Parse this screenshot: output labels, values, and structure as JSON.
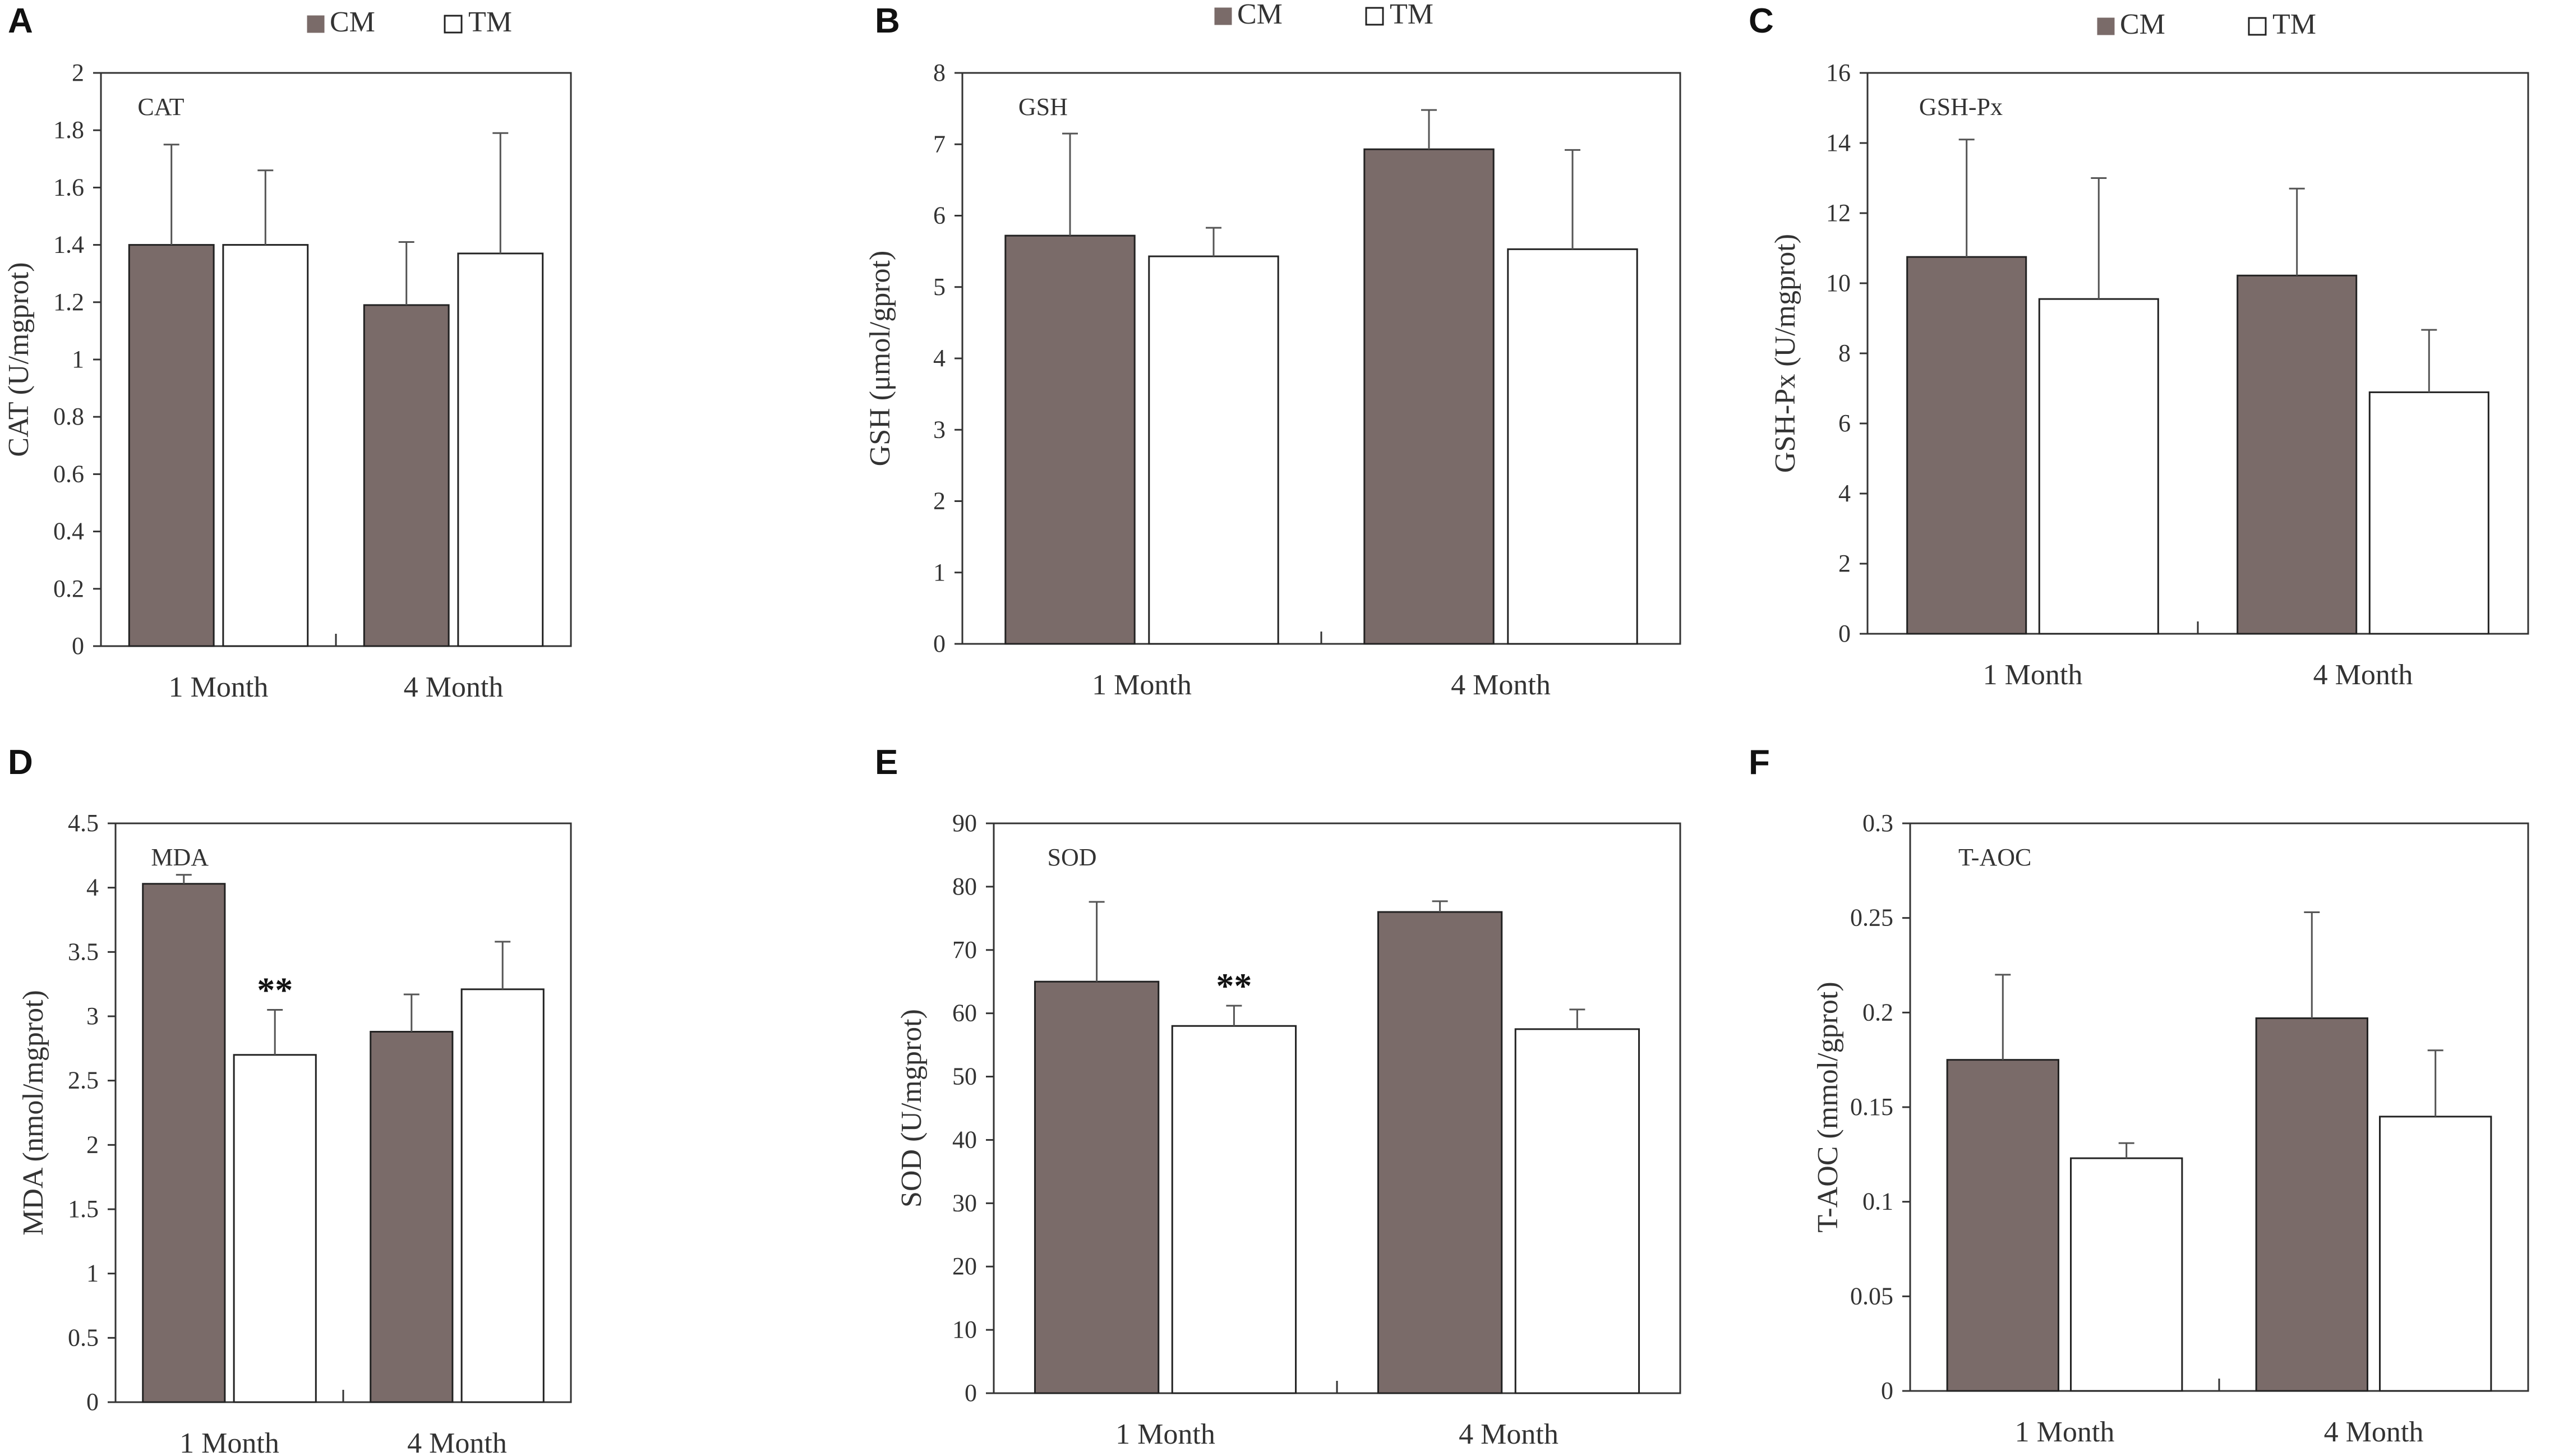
{
  "legend": {
    "cm": "CM",
    "tm": "TM"
  },
  "colors": {
    "cm_fill": "#7a6b69",
    "tm_fill": "#ffffff",
    "stroke": "#222222",
    "axis": "#333333"
  },
  "chart_data": [
    {
      "panel": "A",
      "type": "bar",
      "inner_label": "CAT",
      "categories": [
        "1 Month",
        "4 Month"
      ],
      "series": [
        {
          "name": "CM",
          "values": [
            1.4,
            1.19
          ],
          "errors": [
            0.35,
            0.22
          ]
        },
        {
          "name": "TM",
          "values": [
            1.4,
            1.37
          ],
          "errors": [
            0.26,
            0.42
          ]
        }
      ],
      "ylabel": "CAT (U/mgprot)",
      "ylim": [
        0,
        2
      ],
      "ytick_step": 0.2,
      "yticks": [
        "0",
        "0.2",
        "0.4",
        "0.6",
        "0.8",
        "1",
        "1.2",
        "1.4",
        "1.6",
        "1.8",
        "2"
      ],
      "annotations": []
    },
    {
      "panel": "B",
      "type": "bar",
      "inner_label": "GSH",
      "categories": [
        "1 Month",
        "4 Month"
      ],
      "series": [
        {
          "name": "CM",
          "values": [
            5.72,
            6.93
          ],
          "errors": [
            1.43,
            0.55
          ]
        },
        {
          "name": "TM",
          "values": [
            5.43,
            5.53
          ],
          "errors": [
            0.4,
            1.39
          ]
        }
      ],
      "ylabel": "GSH (μmol/gprot)",
      "ylim": [
        0,
        8
      ],
      "ytick_step": 1,
      "yticks": [
        "0",
        "1",
        "2",
        "3",
        "4",
        "5",
        "6",
        "7",
        "8"
      ],
      "annotations": []
    },
    {
      "panel": "C",
      "type": "bar",
      "inner_label": "GSH-Px",
      "categories": [
        "1 Month",
        "4 Month"
      ],
      "series": [
        {
          "name": "CM",
          "values": [
            10.75,
            10.22
          ],
          "errors": [
            3.35,
            2.48
          ]
        },
        {
          "name": "TM",
          "values": [
            9.55,
            6.89
          ],
          "errors": [
            3.45,
            1.78
          ]
        }
      ],
      "ylabel": "GSH-Px (U/mgprot)",
      "ylim": [
        0,
        16
      ],
      "ytick_step": 2,
      "yticks": [
        "0",
        "2",
        "4",
        "6",
        "8",
        "10",
        "12",
        "14",
        "16"
      ],
      "annotations": []
    },
    {
      "panel": "D",
      "type": "bar",
      "inner_label": "MDA",
      "categories": [
        "1 Month",
        "4 Month"
      ],
      "series": [
        {
          "name": "CM",
          "values": [
            4.03,
            2.88
          ],
          "errors": [
            0.07,
            0.29
          ]
        },
        {
          "name": "TM",
          "values": [
            2.7,
            3.21
          ],
          "errors": [
            0.35,
            0.37
          ]
        }
      ],
      "ylabel": "MDA (nmol/mgprot)",
      "ylim": [
        0,
        4.5
      ],
      "ytick_step": 0.5,
      "yticks": [
        "0",
        "0.5",
        "1",
        "1.5",
        "2",
        "2.5",
        "3",
        "3.5",
        "4",
        "4.5"
      ],
      "annotations": [
        {
          "series": 1,
          "category": 0,
          "text": "**"
        }
      ]
    },
    {
      "panel": "E",
      "type": "bar",
      "inner_label": "SOD",
      "categories": [
        "1 Month",
        "4 Month"
      ],
      "series": [
        {
          "name": "CM",
          "values": [
            65.0,
            76.0
          ],
          "errors": [
            12.6,
            1.7
          ]
        },
        {
          "name": "TM",
          "values": [
            58.0,
            57.5
          ],
          "errors": [
            3.2,
            3.1
          ]
        }
      ],
      "ylabel": "SOD (U/mgprot)",
      "ylim": [
        0,
        90
      ],
      "ytick_step": 10,
      "yticks": [
        "0",
        "10",
        "20",
        "30",
        "40",
        "50",
        "60",
        "70",
        "80",
        "90"
      ],
      "annotations": [
        {
          "series": 1,
          "category": 0,
          "text": "**"
        }
      ]
    },
    {
      "panel": "F",
      "type": "bar",
      "inner_label": "T-AOC",
      "categories": [
        "1 Month",
        "4 Month"
      ],
      "series": [
        {
          "name": "CM",
          "values": [
            0.175,
            0.197
          ],
          "errors": [
            0.045,
            0.056
          ]
        },
        {
          "name": "TM",
          "values": [
            0.123,
            0.145
          ],
          "errors": [
            0.008,
            0.035
          ]
        }
      ],
      "ylabel": "T-AOC (mmol/gprot)",
      "ylim": [
        0,
        0.3
      ],
      "ytick_step": 0.05,
      "yticks": [
        "0",
        "0.05",
        "0.1",
        "0.15",
        "0.2",
        "0.25",
        "0.3"
      ],
      "annotations": []
    }
  ]
}
